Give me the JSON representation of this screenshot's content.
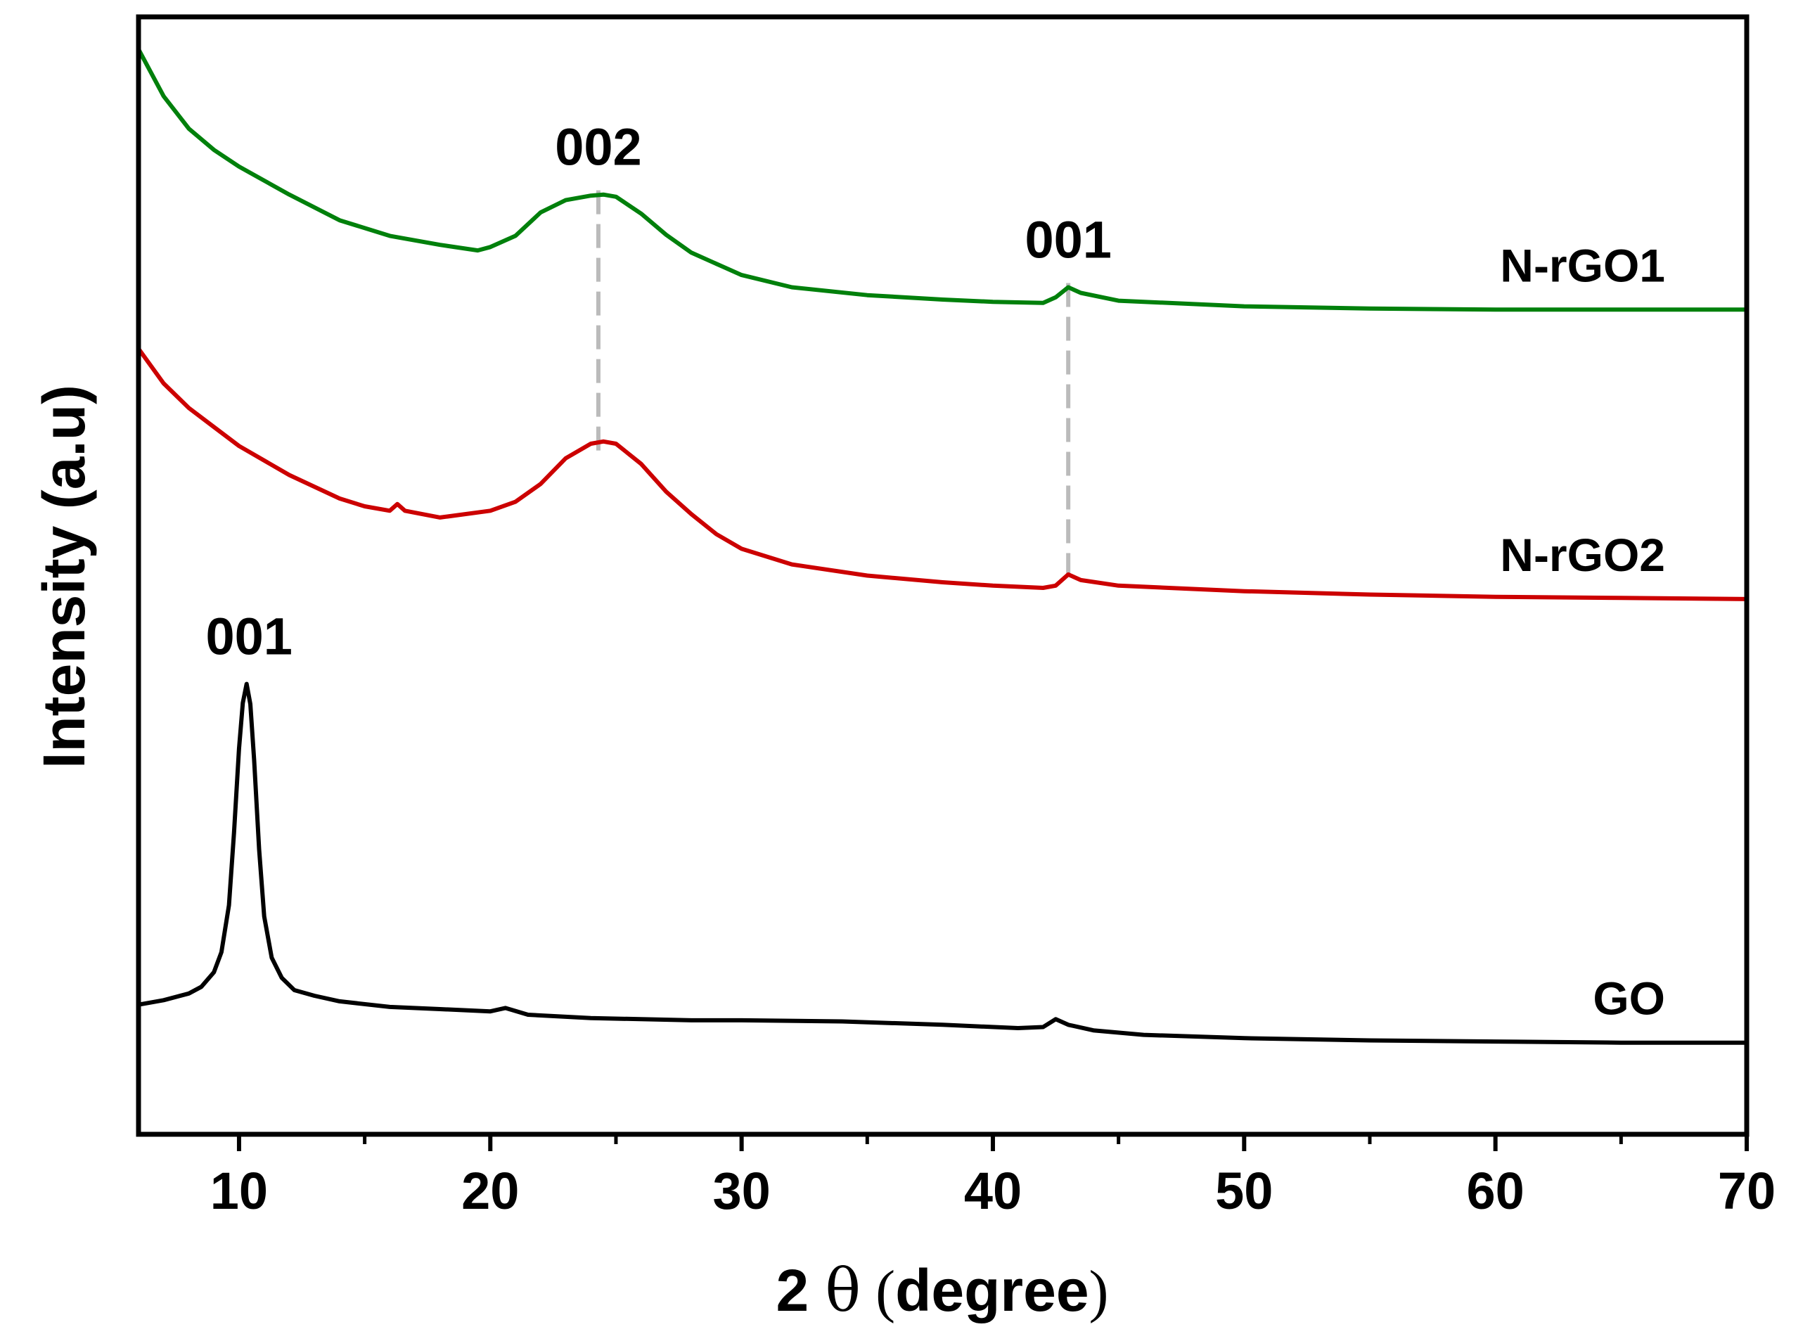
{
  "chart_data": {
    "type": "line",
    "title": "",
    "xlabel_prefix": "2 ",
    "xlabel_symbol": "θ",
    "xlabel_open": " (",
    "xlabel_word": "degree",
    "xlabel_close": ")",
    "xlabel": "2 θ (degree)",
    "ylabel": "Intensity (a.u)",
    "xlim": [
      6,
      70
    ],
    "ylim": [
      0,
      100
    ],
    "x_ticks": [
      10,
      20,
      30,
      40,
      50,
      60,
      70
    ],
    "x_tick_labels": [
      "10",
      "20",
      "30",
      "40",
      "50",
      "60",
      "70"
    ],
    "x_minor_ticks": [
      15,
      25,
      35,
      45,
      55,
      65
    ],
    "y_ticks_shown": false,
    "grid": false,
    "series": [
      {
        "name": "GO",
        "label": "GO",
        "color": "#000000",
        "x": [
          6,
          7,
          8,
          8.5,
          9,
          9.3,
          9.6,
          9.8,
          10.0,
          10.15,
          10.3,
          10.45,
          10.6,
          10.8,
          11.0,
          11.3,
          11.7,
          12.2,
          13,
          14,
          16,
          18,
          20,
          20.6,
          21.5,
          24,
          28,
          30,
          34,
          38,
          41,
          42.0,
          42.5,
          43.0,
          44,
          46,
          50,
          55,
          60,
          65,
          70
        ],
        "values": [
          11.6,
          12.0,
          12.6,
          13.2,
          14.5,
          16.3,
          20.5,
          27.0,
          34.5,
          38.6,
          40.3,
          38.5,
          33.5,
          25.5,
          19.5,
          15.8,
          14.0,
          12.9,
          12.4,
          11.9,
          11.4,
          11.2,
          11.0,
          11.3,
          10.7,
          10.4,
          10.2,
          10.2,
          10.1,
          9.8,
          9.5,
          9.6,
          10.3,
          9.8,
          9.3,
          8.9,
          8.6,
          8.4,
          8.3,
          8.2,
          8.2
        ]
      },
      {
        "name": "N-rGO2",
        "label": "N-rGO2",
        "color": "#cc0000",
        "x": [
          6,
          7,
          8,
          9,
          10,
          12,
          14,
          15,
          16,
          16.3,
          16.6,
          18,
          20,
          21,
          22,
          23,
          24,
          24.5,
          25,
          26,
          27,
          28,
          29,
          30,
          32,
          35,
          38,
          40,
          42,
          42.5,
          43.0,
          43.5,
          45,
          50,
          55,
          60,
          65,
          70
        ],
        "values": [
          70.3,
          67.2,
          65.0,
          63.3,
          61.6,
          59.0,
          56.9,
          56.2,
          55.8,
          56.4,
          55.8,
          55.2,
          55.8,
          56.6,
          58.2,
          60.5,
          61.8,
          62.0,
          61.8,
          60.0,
          57.5,
          55.5,
          53.7,
          52.4,
          51.0,
          50.0,
          49.4,
          49.1,
          48.9,
          49.1,
          50.1,
          49.6,
          49.1,
          48.6,
          48.3,
          48.1,
          48.0,
          47.9
        ]
      },
      {
        "name": "N-rGO1",
        "label": "N-rGO1",
        "color": "#00800b",
        "x": [
          6,
          7,
          8,
          9,
          10,
          12,
          14,
          16,
          18,
          19.5,
          20,
          21,
          22,
          23,
          24,
          24.5,
          25,
          26,
          27,
          28,
          30,
          32,
          35,
          38,
          40,
          42,
          42.5,
          43.0,
          43.5,
          45,
          50,
          55,
          60,
          65,
          70
        ],
        "values": [
          97.1,
          92.9,
          90.0,
          88.1,
          86.6,
          84.1,
          81.8,
          80.4,
          79.6,
          79.1,
          79.4,
          80.4,
          82.5,
          83.6,
          84.0,
          84.1,
          83.9,
          82.4,
          80.5,
          78.9,
          76.9,
          75.8,
          75.1,
          74.7,
          74.5,
          74.4,
          74.9,
          75.8,
          75.3,
          74.6,
          74.1,
          73.9,
          73.8,
          73.8,
          73.8
        ]
      }
    ],
    "peak_markers": [
      {
        "label": "001",
        "x": 10.4,
        "y": 40.3,
        "dashed": false
      },
      {
        "label": "002",
        "x": 24.3,
        "y": 84.1,
        "dashed": true,
        "y_low": 60.5
      },
      {
        "label": "001",
        "x": 43.0,
        "y": 75.8,
        "dashed": true,
        "y_low": 50.1
      }
    ],
    "dashed_line_color": "#bbbbbb"
  }
}
